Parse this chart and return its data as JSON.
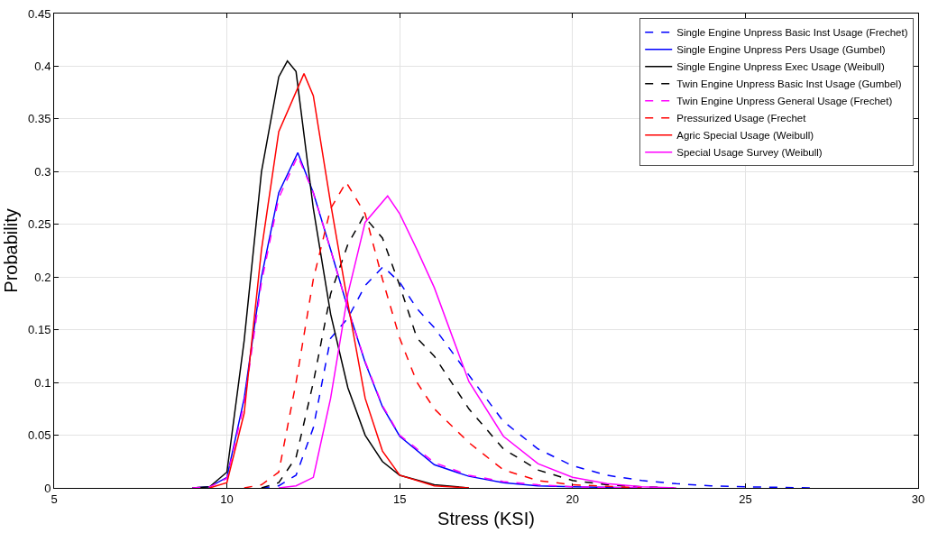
{
  "chart_data": {
    "type": "line",
    "xlabel": "Stress (KSI)",
    "ylabel": "Probability",
    "xlim": [
      5,
      30
    ],
    "ylim": [
      0,
      0.45
    ],
    "xticks": [
      5,
      10,
      15,
      20,
      25,
      30
    ],
    "yticks": [
      0,
      0.05,
      0.1,
      0.15,
      0.2,
      0.25,
      0.3,
      0.35,
      0.4,
      0.45
    ],
    "grid": true,
    "legend": "top right",
    "marker": "none",
    "series": [
      {
        "name": "Single Engine Unpress Basic Inst Usage (Frechet)",
        "color": "#0000ff",
        "line_style": "dashed",
        "x": [
          11,
          11.5,
          12,
          12.5,
          13,
          13.5,
          14,
          14.52,
          15,
          15.5,
          16,
          17,
          18,
          19,
          20,
          21,
          22,
          23,
          24,
          25,
          27
        ],
        "values": [
          0,
          0.002,
          0.012,
          0.057,
          0.142,
          0.161,
          0.192,
          0.21,
          0.195,
          0.17,
          0.152,
          0.107,
          0.063,
          0.037,
          0.021,
          0.012,
          0.007,
          0.004,
          0.002,
          0.001,
          0
        ]
      },
      {
        "name": "Single Engine Unpress Pers Usage (Gumbel)",
        "color": "#0000ff",
        "line_style": "solid",
        "x": [
          9,
          9.5,
          10,
          10.5,
          11,
          11.5,
          12.05,
          12.5,
          13,
          13.5,
          14,
          14.5,
          15,
          16,
          17,
          18,
          19,
          20,
          22
        ],
        "values": [
          0,
          0.001,
          0.01,
          0.085,
          0.2,
          0.28,
          0.318,
          0.28,
          0.226,
          0.17,
          0.119,
          0.077,
          0.049,
          0.022,
          0.011,
          0.005,
          0.002,
          0.001,
          0
        ]
      },
      {
        "name": "Single Engine Unpress Exec Usage (Weibull)",
        "color": "#000000",
        "line_style": "solid",
        "x": [
          9,
          9.5,
          10,
          10.5,
          11,
          11.5,
          11.75,
          12,
          12.5,
          13,
          13.5,
          14,
          14.5,
          15,
          16,
          17
        ],
        "values": [
          0,
          0.001,
          0.015,
          0.14,
          0.3,
          0.39,
          0.405,
          0.395,
          0.265,
          0.165,
          0.095,
          0.05,
          0.025,
          0.012,
          0.003,
          0
        ]
      },
      {
        "name": "Twin Engine Unpress Basic Inst Usage (Gumbel)",
        "color": "#000000",
        "line_style": "dashed",
        "x": [
          11,
          11.5,
          12,
          12.5,
          13,
          13.5,
          13.96,
          14.5,
          15,
          15.5,
          16,
          17,
          18,
          19,
          20,
          21,
          22,
          23
        ],
        "values": [
          0,
          0.005,
          0.029,
          0.1,
          0.184,
          0.231,
          0.258,
          0.237,
          0.192,
          0.142,
          0.125,
          0.075,
          0.037,
          0.017,
          0.007,
          0.003,
          0.001,
          0
        ]
      },
      {
        "name": "Twin Engine Unpress General Usage (Frechet)",
        "color": "#ff00ff",
        "line_style": "dashed",
        "x": [
          9,
          9.5,
          10,
          10.5,
          11,
          11.5,
          12.05,
          12.5,
          13,
          13.5,
          14,
          14.5,
          15,
          16,
          17,
          18,
          19,
          20,
          22
        ],
        "values": [
          0,
          0.001,
          0.009,
          0.08,
          0.195,
          0.275,
          0.315,
          0.28,
          0.226,
          0.17,
          0.12,
          0.078,
          0.05,
          0.024,
          0.012,
          0.006,
          0.003,
          0.001,
          0
        ]
      },
      {
        "name": "Pressurized Usage (Frechet",
        "color": "#ff0000",
        "line_style": "dashed",
        "x": [
          10.5,
          11,
          11.5,
          12,
          12.5,
          13,
          13.45,
          14,
          14.5,
          15,
          15.5,
          16,
          17,
          18,
          19,
          20,
          22
        ],
        "values": [
          0,
          0.003,
          0.015,
          0.1,
          0.198,
          0.265,
          0.29,
          0.26,
          0.198,
          0.142,
          0.1,
          0.075,
          0.043,
          0.017,
          0.007,
          0.003,
          0
        ]
      },
      {
        "name": "Agric Special Usage (Weibull)",
        "color": "#ff0000",
        "line_style": "solid",
        "x": [
          9.5,
          10,
          10.5,
          11,
          11.5,
          12.23,
          12.5,
          13,
          13.5,
          14,
          14.5,
          15,
          16,
          17
        ],
        "values": [
          0,
          0.005,
          0.071,
          0.226,
          0.338,
          0.393,
          0.372,
          0.27,
          0.175,
          0.085,
          0.035,
          0.012,
          0.002,
          0
        ]
      },
      {
        "name": "Special Usage Survey (Weibull)",
        "color": "#ff00ff",
        "line_style": "solid",
        "x": [
          11.5,
          12,
          12.5,
          13,
          13.5,
          14,
          14.65,
          15,
          15.5,
          16,
          17,
          18,
          19,
          20,
          21,
          22,
          23
        ],
        "values": [
          0,
          0.002,
          0.01,
          0.085,
          0.184,
          0.252,
          0.277,
          0.26,
          0.226,
          0.19,
          0.101,
          0.049,
          0.023,
          0.01,
          0.004,
          0.001,
          0
        ]
      }
    ]
  }
}
